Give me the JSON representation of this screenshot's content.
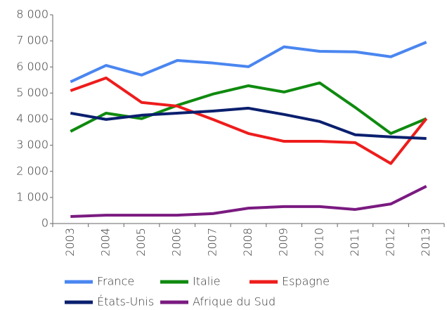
{
  "chart_data": {
    "type": "line",
    "categories": [
      "2003",
      "2004",
      "2005",
      "2006",
      "2007",
      "2008",
      "2009",
      "2010",
      "2011",
      "2012",
      "2013"
    ],
    "series": [
      {
        "name": "France",
        "color": "#4a86f0",
        "values": [
          5430,
          6060,
          5690,
          6250,
          6150,
          6010,
          6770,
          6600,
          6580,
          6390,
          6950
        ]
      },
      {
        "name": "Italie",
        "color": "#0f8a0f",
        "values": [
          3530,
          4230,
          4020,
          4530,
          4960,
          5280,
          5040,
          5390,
          4450,
          3450,
          4020
        ]
      },
      {
        "name": "Espagne",
        "color": "#ee1c1c",
        "values": [
          5090,
          5580,
          4640,
          4500,
          3990,
          3450,
          3150,
          3150,
          3100,
          2300,
          4020
        ]
      },
      {
        "name": "États-Unis",
        "color": "#0a1f6e",
        "values": [
          4230,
          3990,
          4150,
          4230,
          4310,
          4420,
          4180,
          3910,
          3400,
          3320,
          3260
        ]
      },
      {
        "name": "Afrique du Sud",
        "color": "#7a1a80",
        "values": [
          270,
          320,
          320,
          320,
          380,
          590,
          650,
          650,
          540,
          750,
          1430
        ]
      }
    ],
    "ylim": [
      0,
      8000
    ],
    "yticks": [
      0,
      {
        "value": 1000,
        "label": "1 000"
      },
      {
        "value": 2000,
        "label": "2 000"
      },
      {
        "value": 3000,
        "label": "3 000"
      },
      {
        "value": 4000,
        "label": "4 000"
      },
      {
        "value": 5000,
        "label": "5 000"
      },
      {
        "value": 6000,
        "label": "6 000"
      },
      {
        "value": 7000,
        "label": "7 000"
      },
      {
        "value": 8000,
        "label": "8 000"
      }
    ],
    "grid": false
  }
}
